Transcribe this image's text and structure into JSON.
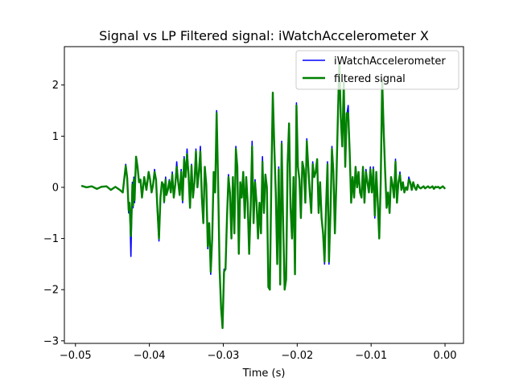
{
  "chart_data": {
    "type": "line",
    "title": "Signal vs LP Filtered signal: iWatchAccelerometer X",
    "xlabel": "Time (s)",
    "ylabel": "",
    "xlim": [
      -0.0515,
      0.0025
    ],
    "ylim": [
      -3.05,
      2.75
    ],
    "xticks": [
      -0.05,
      -0.04,
      -0.03,
      -0.02,
      -0.01,
      0.0
    ],
    "xtick_labels": [
      "−0.05",
      "−0.04",
      "−0.03",
      "−0.02",
      "−0.01",
      "0.00"
    ],
    "yticks": [
      -3,
      -2,
      -1,
      0,
      1,
      2
    ],
    "ytick_labels": [
      "−3",
      "−2",
      "−1",
      "0",
      "1",
      "2"
    ],
    "legend_position": "top-right",
    "series": [
      {
        "name": "iWatchAccelerometer",
        "color": "#0000ff",
        "x": [
          -0.0492,
          -0.0485,
          -0.0478,
          -0.0471,
          -0.0465,
          -0.0458,
          -0.0452,
          -0.0446,
          -0.044,
          -0.0436,
          -0.0432,
          -0.043,
          -0.0428,
          -0.0427,
          -0.0426,
          -0.0425,
          -0.0424,
          -0.0423,
          -0.0422,
          -0.0421,
          -0.042,
          -0.0419,
          -0.0418,
          -0.0416,
          -0.0414,
          -0.0412,
          -0.041,
          -0.0407,
          -0.0404,
          -0.0401,
          -0.0399,
          -0.0397,
          -0.0395,
          -0.0393,
          -0.0391,
          -0.0389,
          -0.0387,
          -0.0385,
          -0.0383,
          -0.0381,
          -0.038,
          -0.0379,
          -0.0378,
          -0.0377,
          -0.0375,
          -0.0373,
          -0.0371,
          -0.0369,
          -0.0367,
          -0.0365,
          -0.0363,
          -0.0361,
          -0.0359,
          -0.0357,
          -0.0355,
          -0.0353,
          -0.0351,
          -0.0349,
          -0.0347,
          -0.0345,
          -0.0343,
          -0.0341,
          -0.0339,
          -0.0337,
          -0.0335,
          -0.0333,
          -0.0331,
          -0.0329,
          -0.0327,
          -0.0325,
          -0.0323,
          -0.0321,
          -0.0319,
          -0.0317,
          -0.0315,
          -0.0313,
          -0.0311,
          -0.0309,
          -0.0307,
          -0.0305,
          -0.0303,
          -0.0301,
          -0.0299,
          -0.0297,
          -0.0295,
          -0.0293,
          -0.0291,
          -0.0289,
          -0.0287,
          -0.0285,
          -0.0283,
          -0.0281,
          -0.0279,
          -0.0277,
          -0.0275,
          -0.0273,
          -0.0271,
          -0.0269,
          -0.0267,
          -0.0265,
          -0.0263,
          -0.0261,
          -0.0259,
          -0.0257,
          -0.0255,
          -0.0253,
          -0.0251,
          -0.0249,
          -0.0247,
          -0.0245,
          -0.0243,
          -0.0241,
          -0.0239,
          -0.0237,
          -0.0235,
          -0.0233,
          -0.0231,
          -0.0229,
          -0.0227,
          -0.0225,
          -0.0223,
          -0.0221,
          -0.0219,
          -0.0217,
          -0.0215,
          -0.0213,
          -0.0211,
          -0.0209,
          -0.0207,
          -0.0205,
          -0.0203,
          -0.0201,
          -0.0199,
          -0.0197,
          -0.0195,
          -0.0193,
          -0.0191,
          -0.0189,
          -0.0187,
          -0.0185,
          -0.0183,
          -0.0181,
          -0.0179,
          -0.0177,
          -0.0175,
          -0.0173,
          -0.0171,
          -0.0169,
          -0.0167,
          -0.0165,
          -0.0163,
          -0.0161,
          -0.0159,
          -0.0157,
          -0.0155,
          -0.0153,
          -0.0151,
          -0.0149,
          -0.0147,
          -0.0145,
          -0.0143,
          -0.0141,
          -0.0139,
          -0.0137,
          -0.0135,
          -0.0133,
          -0.0131,
          -0.0129,
          -0.0127,
          -0.0125,
          -0.0123,
          -0.0121,
          -0.0119,
          -0.0117,
          -0.0115,
          -0.0113,
          -0.0111,
          -0.0109,
          -0.0107,
          -0.0105,
          -0.0103,
          -0.0101,
          -0.0099,
          -0.0097,
          -0.0095,
          -0.0093,
          -0.0091,
          -0.0089,
          -0.0087,
          -0.0085,
          -0.0083,
          -0.0081,
          -0.0079,
          -0.0077,
          -0.0075,
          -0.0073,
          -0.0071,
          -0.0069,
          -0.0067,
          -0.0065,
          -0.0063,
          -0.0061,
          -0.0059,
          -0.0057,
          -0.0055,
          -0.0053,
          -0.0051,
          -0.0049,
          -0.0047,
          -0.0045,
          -0.0043,
          -0.0041,
          -0.0039,
          -0.0037,
          -0.0035,
          -0.0033,
          -0.0031,
          -0.0029,
          -0.0027,
          -0.0025,
          -0.0023,
          -0.0021,
          -0.0019,
          -0.0017,
          -0.0015,
          -0.0013,
          -0.0011,
          -0.0009,
          -0.0007,
          -0.0005,
          -0.0003,
          -0.0001,
          0.0
        ],
        "y": [
          0.03,
          0.0,
          0.02,
          -0.03,
          0.01,
          0.02,
          -0.05,
          0.01,
          -0.05,
          -0.1,
          0.45,
          0.2,
          -0.5,
          -0.3,
          -0.7,
          -1.35,
          -0.6,
          0.1,
          -0.4,
          0.2,
          -0.3,
          0.25,
          0.6,
          0.4,
          0.1,
          0.15,
          -0.2,
          0.2,
          -0.05,
          0.3,
          0.15,
          -0.1,
          0.05,
          0.35,
          0.15,
          -0.5,
          -1.05,
          -0.2,
          0.1,
          0.05,
          -0.3,
          0.0,
          0.2,
          -0.15,
          -0.05,
          0.15,
          -0.1,
          0.3,
          -0.2,
          0.05,
          0.5,
          0.1,
          -0.15,
          0.35,
          -0.3,
          0.6,
          0.2,
          0.75,
          0.25,
          -0.4,
          0.45,
          -0.2,
          0.1,
          0.75,
          0.0,
          0.3,
          0.8,
          -0.2,
          -0.7,
          0.4,
          0.05,
          -1.2,
          -0.7,
          -1.7,
          -1.0,
          0.3,
          -0.1,
          1.5,
          0.1,
          -1.6,
          -2.4,
          -2.7,
          -1.6,
          -1.6,
          -0.6,
          0.25,
          -0.1,
          -1.0,
          0.2,
          -0.9,
          0.8,
          0.4,
          -1.3,
          0.1,
          -0.2,
          0.3,
          -0.6,
          0.2,
          -0.3,
          -1.3,
          -0.4,
          0.9,
          -0.7,
          0.15,
          -0.3,
          -1.0,
          -0.3,
          -0.9,
          0.6,
          -0.5,
          0.25,
          0.0,
          -1.9,
          -2.0,
          0.1,
          1.85,
          0.8,
          -0.1,
          -1.5,
          0.4,
          -1.9,
          0.9,
          -0.7,
          -2.0,
          -1.8,
          0.5,
          1.25,
          -0.4,
          -1.0,
          0.2,
          -1.7,
          1.65,
          0.4,
          0.15,
          -0.6,
          0.5,
          0.35,
          -0.3,
          0.95,
          0.4,
          -0.1,
          -0.5,
          0.5,
          0.2,
          0.3,
          0.55,
          -0.5,
          0.1,
          -0.6,
          -0.9,
          -1.5,
          -0.4,
          0.5,
          -1.5,
          -0.5,
          0.8,
          0.3,
          -0.9,
          0.1,
          1.3,
          2.3,
          1.4,
          0.8,
          2.0,
          0.4,
          1.4,
          1.6,
          0.7,
          -0.3,
          0.2,
          -0.2,
          0.4,
          0.0,
          0.3,
          -0.1,
          -0.2,
          0.4,
          -0.3,
          0.35,
          0.1,
          -0.1,
          0.4,
          -0.1,
          0.4,
          -0.6,
          0.3,
          -0.3,
          -1.0,
          0.1,
          1.9,
          1.2,
          0.3,
          -0.4,
          -0.1,
          -0.5,
          0.2,
          0.05,
          -0.2,
          0.55,
          -0.3,
          0.1,
          0.3,
          -0.05,
          0.1,
          -0.1,
          0.0,
          -0.05,
          0.2,
          0.1,
          -0.05,
          0.1,
          0.0,
          -0.05,
          0.05,
          0.0,
          -0.02,
          0.0,
          0.02,
          -0.02,
          0.0,
          0.02,
          -0.01,
          0.0,
          0.02,
          -0.03,
          0.01,
          0.0,
          0.01,
          -0.02,
          0.0,
          0.02,
          -0.01,
          -0.03
        ]
      },
      {
        "name": "filtered signal",
        "color": "#008000",
        "x": [
          -0.0492,
          -0.0485,
          -0.0478,
          -0.0471,
          -0.0465,
          -0.0458,
          -0.0452,
          -0.0446,
          -0.044,
          -0.0436,
          -0.0432,
          -0.043,
          -0.0428,
          -0.0427,
          -0.0426,
          -0.0425,
          -0.0424,
          -0.0423,
          -0.0422,
          -0.0421,
          -0.042,
          -0.0419,
          -0.0418,
          -0.0416,
          -0.0414,
          -0.0412,
          -0.041,
          -0.0407,
          -0.0404,
          -0.0401,
          -0.0399,
          -0.0397,
          -0.0395,
          -0.0393,
          -0.0391,
          -0.0389,
          -0.0387,
          -0.0385,
          -0.0383,
          -0.0381,
          -0.038,
          -0.0379,
          -0.0378,
          -0.0377,
          -0.0375,
          -0.0373,
          -0.0371,
          -0.0369,
          -0.0367,
          -0.0365,
          -0.0363,
          -0.0361,
          -0.0359,
          -0.0357,
          -0.0355,
          -0.0353,
          -0.0351,
          -0.0349,
          -0.0347,
          -0.0345,
          -0.0343,
          -0.0341,
          -0.0339,
          -0.0337,
          -0.0335,
          -0.0333,
          -0.0331,
          -0.0329,
          -0.0327,
          -0.0325,
          -0.0323,
          -0.0321,
          -0.0319,
          -0.0317,
          -0.0315,
          -0.0313,
          -0.0311,
          -0.0309,
          -0.0307,
          -0.0305,
          -0.0303,
          -0.0301,
          -0.0299,
          -0.0297,
          -0.0295,
          -0.0293,
          -0.0291,
          -0.0289,
          -0.0287,
          -0.0285,
          -0.0283,
          -0.0281,
          -0.0279,
          -0.0277,
          -0.0275,
          -0.0273,
          -0.0271,
          -0.0269,
          -0.0267,
          -0.0265,
          -0.0263,
          -0.0261,
          -0.0259,
          -0.0257,
          -0.0255,
          -0.0253,
          -0.0251,
          -0.0249,
          -0.0247,
          -0.0245,
          -0.0243,
          -0.0241,
          -0.0239,
          -0.0237,
          -0.0235,
          -0.0233,
          -0.0231,
          -0.0229,
          -0.0227,
          -0.0225,
          -0.0223,
          -0.0221,
          -0.0219,
          -0.0217,
          -0.0215,
          -0.0213,
          -0.0211,
          -0.0209,
          -0.0207,
          -0.0205,
          -0.0203,
          -0.0201,
          -0.0199,
          -0.0197,
          -0.0195,
          -0.0193,
          -0.0191,
          -0.0189,
          -0.0187,
          -0.0185,
          -0.0183,
          -0.0181,
          -0.0179,
          -0.0177,
          -0.0175,
          -0.0173,
          -0.0171,
          -0.0169,
          -0.0167,
          -0.0165,
          -0.0163,
          -0.0161,
          -0.0159,
          -0.0157,
          -0.0155,
          -0.0153,
          -0.0151,
          -0.0149,
          -0.0147,
          -0.0145,
          -0.0143,
          -0.0141,
          -0.0139,
          -0.0137,
          -0.0135,
          -0.0133,
          -0.0131,
          -0.0129,
          -0.0127,
          -0.0125,
          -0.0123,
          -0.0121,
          -0.0119,
          -0.0117,
          -0.0115,
          -0.0113,
          -0.0111,
          -0.0109,
          -0.0107,
          -0.0105,
          -0.0103,
          -0.0101,
          -0.0099,
          -0.0097,
          -0.0095,
          -0.0093,
          -0.0091,
          -0.0089,
          -0.0087,
          -0.0085,
          -0.0083,
          -0.0081,
          -0.0079,
          -0.0077,
          -0.0075,
          -0.0073,
          -0.0071,
          -0.0069,
          -0.0067,
          -0.0065,
          -0.0063,
          -0.0061,
          -0.0059,
          -0.0057,
          -0.0055,
          -0.0053,
          -0.0051,
          -0.0049,
          -0.0047,
          -0.0045,
          -0.0043,
          -0.0041,
          -0.0039,
          -0.0037,
          -0.0035,
          -0.0033,
          -0.0031,
          -0.0029,
          -0.0027,
          -0.0025,
          -0.0023,
          -0.0021,
          -0.0019,
          -0.0017,
          -0.0015,
          -0.0013,
          -0.0011,
          -0.0009,
          -0.0007,
          -0.0005,
          -0.0003,
          -0.0001,
          0.0
        ],
        "y": [
          0.03,
          0.0,
          0.02,
          -0.03,
          0.01,
          0.02,
          -0.05,
          0.01,
          -0.05,
          -0.1,
          0.42,
          0.18,
          -0.45,
          -0.3,
          -0.6,
          -0.95,
          -0.5,
          0.05,
          -0.35,
          0.15,
          -0.25,
          0.2,
          0.6,
          0.4,
          0.1,
          0.15,
          -0.2,
          0.2,
          -0.05,
          0.3,
          0.15,
          -0.1,
          0.05,
          0.3,
          0.15,
          -0.45,
          -1.0,
          -0.2,
          0.1,
          0.05,
          -0.28,
          0.0,
          0.15,
          -0.15,
          -0.05,
          0.12,
          -0.1,
          0.25,
          -0.2,
          0.05,
          0.4,
          0.1,
          -0.15,
          0.3,
          -0.25,
          0.55,
          0.2,
          0.65,
          0.25,
          -0.4,
          0.42,
          -0.2,
          0.1,
          0.7,
          0.0,
          0.3,
          0.7,
          -0.2,
          -0.7,
          0.4,
          0.05,
          -1.15,
          -0.7,
          -1.65,
          -1.0,
          0.3,
          -0.1,
          1.45,
          0.1,
          -1.6,
          -2.35,
          -2.75,
          -1.65,
          -1.6,
          -0.6,
          0.2,
          -0.1,
          -1.0,
          0.2,
          -0.9,
          0.75,
          0.4,
          -1.3,
          0.1,
          -0.2,
          0.3,
          -0.6,
          0.2,
          -0.3,
          -1.3,
          -0.4,
          0.8,
          -0.7,
          0.1,
          -0.3,
          -1.0,
          -0.3,
          -0.9,
          0.5,
          -0.5,
          0.25,
          0.0,
          -1.95,
          -2.0,
          0.1,
          1.85,
          0.8,
          -0.1,
          -1.5,
          0.35,
          -1.9,
          0.85,
          -0.7,
          -2.0,
          -1.8,
          0.45,
          1.25,
          -0.4,
          -1.0,
          0.2,
          -1.7,
          1.6,
          0.4,
          0.15,
          -0.6,
          0.5,
          0.35,
          -0.3,
          0.9,
          0.4,
          -0.1,
          -0.5,
          0.45,
          0.2,
          0.3,
          0.55,
          -0.5,
          0.1,
          -0.6,
          -0.9,
          -1.45,
          -0.4,
          0.45,
          -1.45,
          -0.5,
          0.75,
          0.3,
          -0.9,
          0.1,
          1.35,
          2.45,
          1.35,
          0.8,
          2.05,
          0.4,
          1.45,
          1.45,
          0.7,
          -0.3,
          0.2,
          -0.2,
          0.4,
          0.0,
          0.3,
          -0.1,
          -0.2,
          0.4,
          -0.3,
          0.3,
          0.1,
          -0.1,
          0.35,
          -0.1,
          0.35,
          -0.55,
          0.3,
          -0.3,
          -1.0,
          0.1,
          2.1,
          1.1,
          0.3,
          -0.4,
          -0.1,
          -0.5,
          0.2,
          0.05,
          -0.2,
          0.5,
          -0.3,
          0.1,
          0.25,
          -0.05,
          0.1,
          -0.1,
          0.0,
          -0.05,
          0.15,
          0.1,
          -0.05,
          0.1,
          0.0,
          -0.05,
          0.05,
          0.0,
          -0.02,
          0.0,
          0.02,
          -0.02,
          0.0,
          0.02,
          -0.01,
          0.0,
          0.02,
          -0.03,
          0.01,
          0.0,
          0.01,
          -0.02,
          0.0,
          0.02,
          -0.01,
          -0.03
        ]
      }
    ]
  }
}
